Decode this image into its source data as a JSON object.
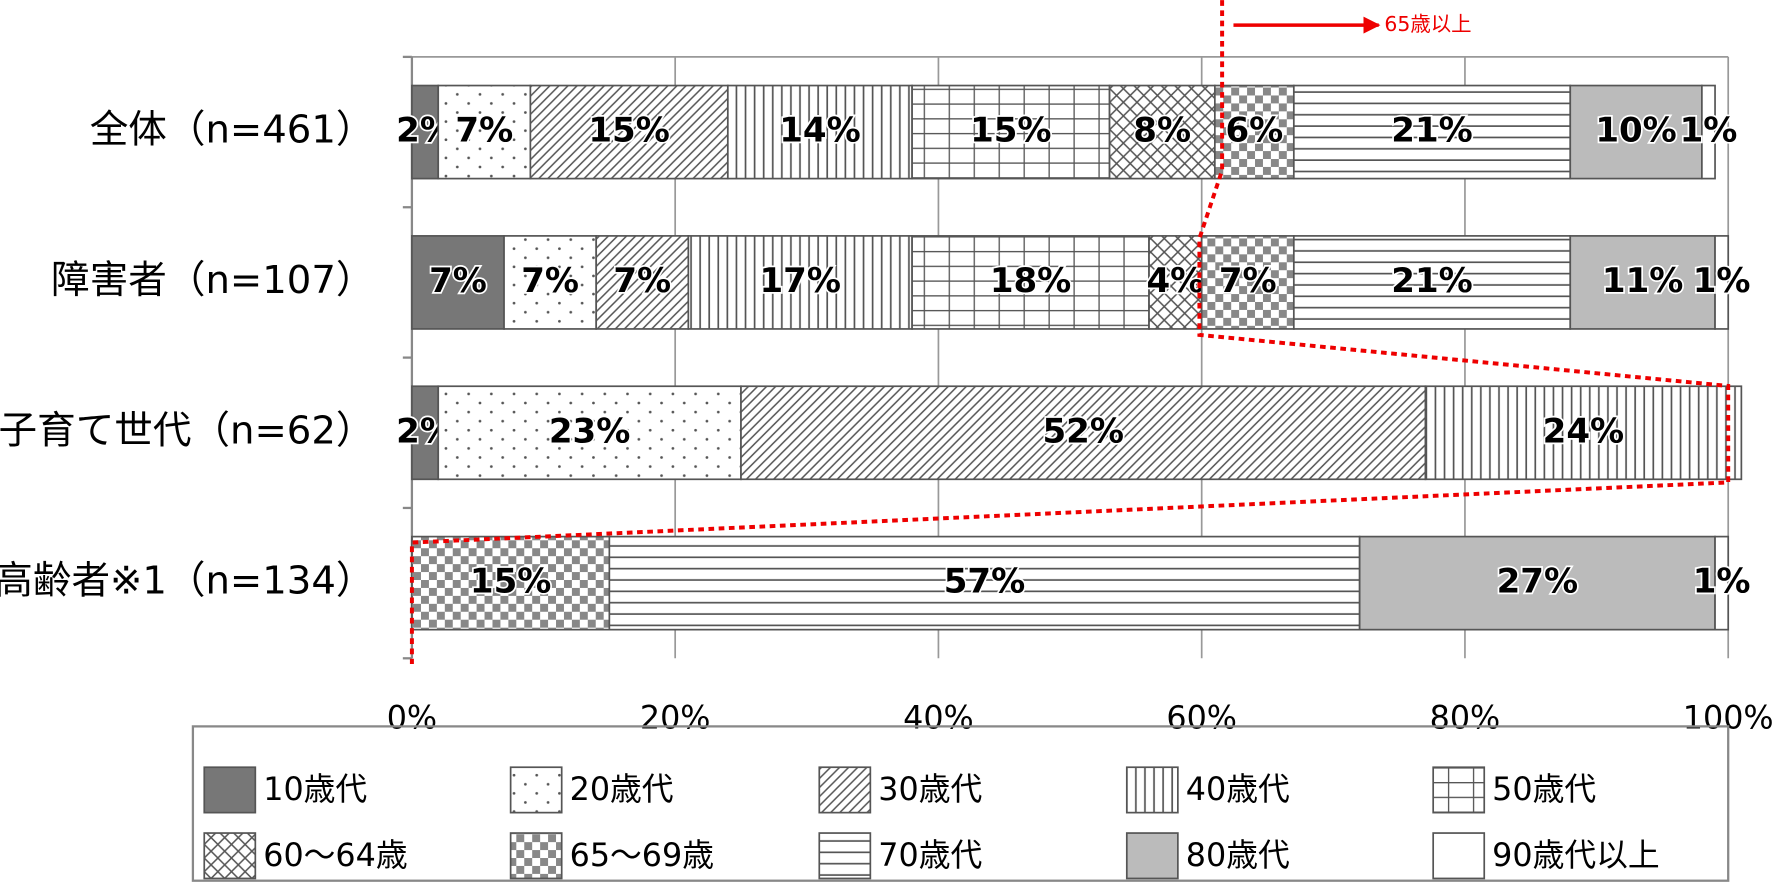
{
  "chart_data": {
    "type": "stacked-bar-horizontal",
    "categories": [
      "全体（n=461）",
      "障害者（n=107）",
      "子育て世代（n=62）",
      "高齢者※1（n=134）"
    ],
    "series": [
      {
        "name": "10歳代",
        "color": "#777777",
        "values": [
          2,
          7,
          2,
          null
        ],
        "value_labels": [
          "2%",
          "7%",
          "2%",
          null
        ]
      },
      {
        "name": "20歳代",
        "color": "#ffffff",
        "values": [
          7,
          7,
          23,
          null
        ],
        "value_labels": [
          "7%",
          "7%",
          "23%",
          null
        ]
      },
      {
        "name": "30歳代",
        "color": "#ffffff",
        "values": [
          15,
          7,
          52,
          null
        ],
        "value_labels": [
          "15%",
          "7%",
          "52%",
          null
        ]
      },
      {
        "name": "40歳代",
        "color": "#ffffff",
        "values": [
          14,
          17,
          24,
          null
        ],
        "value_labels": [
          "14%",
          "17%",
          "24%",
          null
        ]
      },
      {
        "name": "50歳代",
        "color": "#ffffff",
        "values": [
          15,
          18,
          null,
          null
        ],
        "value_labels": [
          "15%",
          "18%",
          null,
          null
        ]
      },
      {
        "name": "60～64歳",
        "color": "#ffffff",
        "values": [
          8,
          4,
          null,
          null
        ],
        "value_labels": [
          "8%",
          "4%",
          null,
          null
        ]
      },
      {
        "name": "65～69歳",
        "color": "#ffffff",
        "values": [
          6,
          7,
          null,
          15
        ],
        "value_labels": [
          "6%",
          "7%",
          null,
          "15%"
        ]
      },
      {
        "name": "70歳代",
        "color": "#ffffff",
        "values": [
          21,
          21,
          null,
          57
        ],
        "value_labels": [
          "21%",
          "21%",
          null,
          "57%"
        ]
      },
      {
        "name": "80歳代",
        "color": "#bbbbbb",
        "values": [
          10,
          11,
          null,
          27
        ],
        "value_labels": [
          "10%",
          "11%",
          null,
          "27%"
        ]
      },
      {
        "name": "90歳代以上",
        "color": "#ffffff",
        "values": [
          1,
          1,
          null,
          1
        ],
        "value_labels": [
          "1%",
          "1%",
          null,
          "1%"
        ]
      }
    ],
    "xlim": [
      0,
      100
    ],
    "xticks": [
      {
        "value": 0,
        "label": "0%"
      },
      {
        "value": 20,
        "label": "20%"
      },
      {
        "value": 40,
        "label": "40%"
      },
      {
        "value": 60,
        "label": "60%"
      },
      {
        "value": 80,
        "label": "80%"
      },
      {
        "value": 100,
        "label": "100%"
      }
    ],
    "grid": true,
    "annotation": "65歳以上"
  }
}
